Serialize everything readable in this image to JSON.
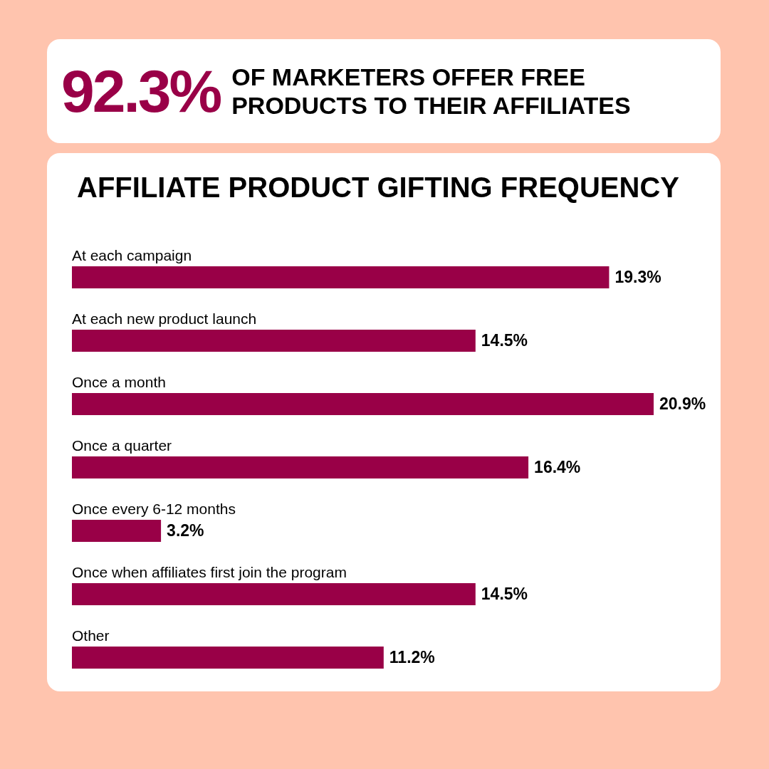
{
  "chart_data": {
    "type": "bar",
    "orientation": "horizontal",
    "title": "AFFILIATE PRODUCT GIFTING FREQUENCY",
    "annotations": [
      "92.3%",
      "OF MARKETERS OFFER FREE PRODUCTS TO THEIR AFFILIATES"
    ],
    "categories": [
      "At each campaign",
      "At each new product launch",
      "Once a month",
      "Once a quarter",
      "Once every 6-12 months",
      "Once when affiliates first join the program",
      "Other"
    ],
    "values": [
      19.3,
      14.5,
      20.9,
      16.4,
      3.2,
      14.5,
      11.2
    ],
    "value_labels": [
      "19.3%",
      "14.5%",
      "20.9%",
      "16.4%",
      "3.2%",
      "14.5%",
      "11.2%"
    ],
    "color": "#990047"
  }
}
